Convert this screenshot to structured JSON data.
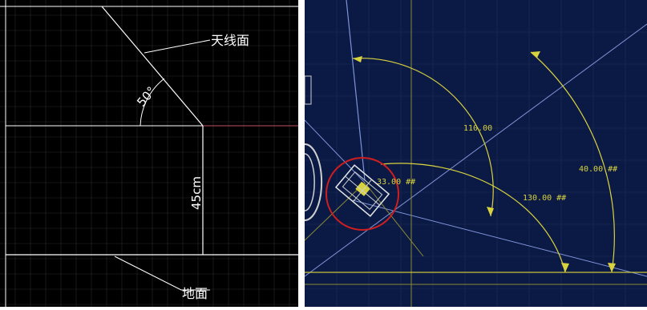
{
  "left_diagram": {
    "antenna_label": "天线面",
    "angle_label": "50°",
    "height_label": "45cm",
    "ground_label": "地面",
    "colors": {
      "background": "#000000",
      "grid": "#2a2a2a",
      "lines": "#ffffff",
      "reference_line": "#c05060"
    }
  },
  "right_diagram": {
    "dimensions": [
      "110.00",
      "40.00 ##",
      "130.00 ##",
      "33.00 ##"
    ],
    "colors": {
      "background": "#0b1a45",
      "grid": "#1f2e5a",
      "blue_lines": "#7f93d8",
      "yellow": "#d9d23f",
      "olive": "#8a8a35",
      "circle": "#d01e1e",
      "device": "#e6e6e6"
    }
  }
}
